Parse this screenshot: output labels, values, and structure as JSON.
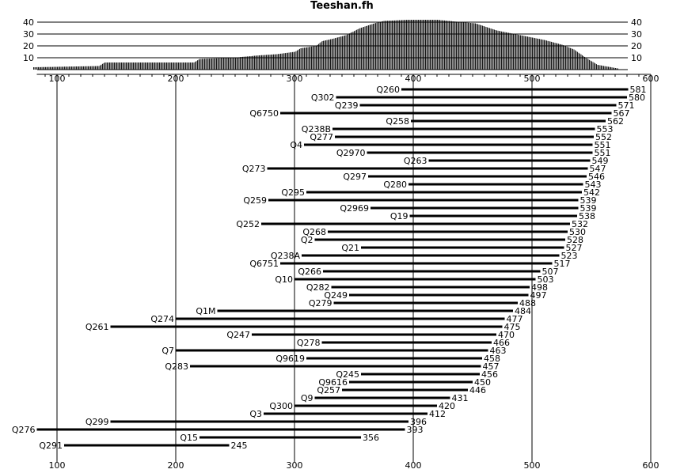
{
  "chart_data": {
    "type": "bar",
    "title": "Teeshan.fh",
    "density_histogram": {
      "ylim": [
        0,
        42
      ],
      "yticks": [
        10,
        20,
        30,
        40
      ],
      "profile": [
        [
          80,
          2
        ],
        [
          135,
          3
        ],
        [
          140,
          6
        ],
        [
          215,
          6
        ],
        [
          220,
          9
        ],
        [
          248,
          10
        ],
        [
          270,
          12
        ],
        [
          285,
          13
        ],
        [
          300,
          15
        ],
        [
          305,
          18
        ],
        [
          318,
          20
        ],
        [
          323,
          24
        ],
        [
          332,
          26
        ],
        [
          343,
          29
        ],
        [
          355,
          35
        ],
        [
          367,
          39
        ],
        [
          375,
          41
        ],
        [
          395,
          42
        ],
        [
          420,
          42
        ],
        [
          440,
          40
        ],
        [
          452,
          39
        ],
        [
          470,
          33
        ],
        [
          490,
          29
        ],
        [
          510,
          25
        ],
        [
          525,
          21
        ],
        [
          535,
          17
        ],
        [
          545,
          10
        ],
        [
          555,
          4
        ],
        [
          572,
          1
        ]
      ]
    },
    "xlim": [
      83,
      600
    ],
    "xticks": [
      100,
      200,
      300,
      400,
      500,
      600
    ],
    "segments": [
      {
        "label": "Q260",
        "start": 390,
        "end": 581
      },
      {
        "label": "Q302",
        "start": 335,
        "end": 580
      },
      {
        "label": "Q239",
        "start": 355,
        "end": 571
      },
      {
        "label": "Q6750",
        "start": 288,
        "end": 567
      },
      {
        "label": "Q258",
        "start": 398,
        "end": 562
      },
      {
        "label": "Q238B",
        "start": 332,
        "end": 553
      },
      {
        "label": "Q277",
        "start": 334,
        "end": 552
      },
      {
        "label": "Q4",
        "start": 308,
        "end": 551
      },
      {
        "label": "Q2970",
        "start": 361,
        "end": 551
      },
      {
        "label": "Q263",
        "start": 413,
        "end": 549
      },
      {
        "label": "Q273",
        "start": 277,
        "end": 547
      },
      {
        "label": "Q297",
        "start": 362,
        "end": 546
      },
      {
        "label": "Q280",
        "start": 396,
        "end": 543
      },
      {
        "label": "Q295",
        "start": 310,
        "end": 542
      },
      {
        "label": "Q259",
        "start": 278,
        "end": 539
      },
      {
        "label": "Q2969",
        "start": 364,
        "end": 539
      },
      {
        "label": "Q19",
        "start": 397,
        "end": 538
      },
      {
        "label": "Q252",
        "start": 272,
        "end": 532
      },
      {
        "label": "Q268",
        "start": 328,
        "end": 530
      },
      {
        "label": "Q2",
        "start": 317,
        "end": 528
      },
      {
        "label": "Q21",
        "start": 356,
        "end": 527
      },
      {
        "label": "Q238A",
        "start": 306,
        "end": 523
      },
      {
        "label": "Q6751",
        "start": 288,
        "end": 517
      },
      {
        "label": "Q266",
        "start": 324,
        "end": 507
      },
      {
        "label": "Q10",
        "start": 300,
        "end": 503
      },
      {
        "label": "Q282",
        "start": 331,
        "end": 498
      },
      {
        "label": "Q249",
        "start": 346,
        "end": 497
      },
      {
        "label": "Q279",
        "start": 333,
        "end": 488
      },
      {
        "label": "Q1M",
        "start": 235,
        "end": 484
      },
      {
        "label": "Q274",
        "start": 200,
        "end": 477
      },
      {
        "label": "Q261",
        "start": 145,
        "end": 475
      },
      {
        "label": "Q247",
        "start": 264,
        "end": 470
      },
      {
        "label": "Q278",
        "start": 323,
        "end": 466
      },
      {
        "label": "Q7",
        "start": 200,
        "end": 463
      },
      {
        "label": "Q9619",
        "start": 310,
        "end": 458
      },
      {
        "label": "Q283",
        "start": 212,
        "end": 457
      },
      {
        "label": "Q245",
        "start": 356,
        "end": 456
      },
      {
        "label": "Q9616",
        "start": 346,
        "end": 450
      },
      {
        "label": "Q257",
        "start": 340,
        "end": 446
      },
      {
        "label": "Q9",
        "start": 317,
        "end": 431
      },
      {
        "label": "Q300",
        "start": 300,
        "end": 420
      },
      {
        "label": "Q3",
        "start": 274,
        "end": 412
      },
      {
        "label": "Q299",
        "start": 145,
        "end": 396
      },
      {
        "label": "Q276",
        "start": 83,
        "end": 393
      },
      {
        "label": "Q15",
        "start": 220,
        "end": 356
      },
      {
        "label": "Q291",
        "start": 106,
        "end": 245
      }
    ]
  }
}
